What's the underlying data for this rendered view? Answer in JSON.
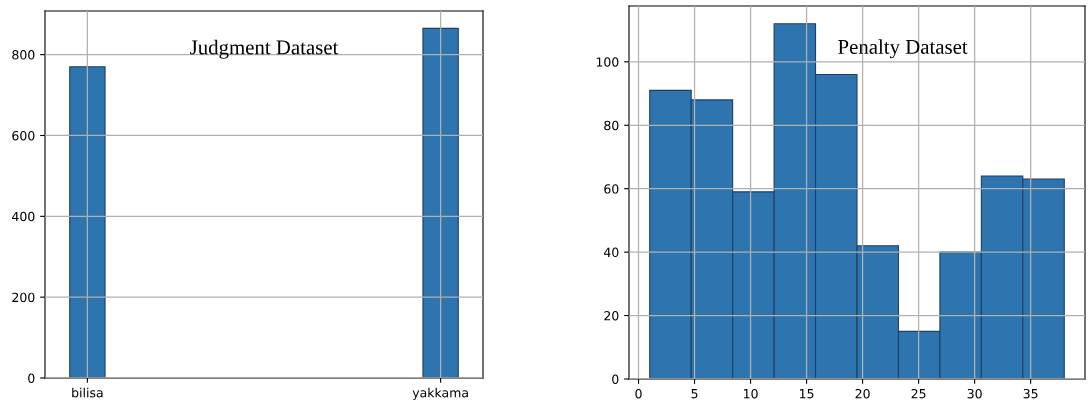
{
  "chart_data": [
    {
      "type": "bar",
      "title": "Judgment Dataset",
      "categories": [
        "bilisa",
        "yakkama"
      ],
      "values": [
        770,
        865
      ],
      "color": "#2e75b0",
      "ylim": [
        0,
        908
      ],
      "yticks": [
        0,
        200,
        400,
        600,
        800
      ],
      "grid": true
    },
    {
      "type": "histogram",
      "title": "Penalty Dataset",
      "bins": [
        1,
        4.7,
        8.4,
        12.1,
        15.8,
        19.5,
        23.2,
        26.9,
        30.6,
        34.3,
        38
      ],
      "values": [
        91,
        88,
        59,
        112,
        96,
        42,
        15,
        40,
        64,
        63
      ],
      "color": "#2e75b0",
      "xlim": [
        -0.85,
        39.85
      ],
      "xticks": [
        0,
        5,
        10,
        15,
        20,
        25,
        30,
        35
      ],
      "ylim": [
        0,
        117.6
      ],
      "yticks": [
        0,
        20,
        40,
        60,
        80,
        100
      ],
      "grid": true
    }
  ]
}
